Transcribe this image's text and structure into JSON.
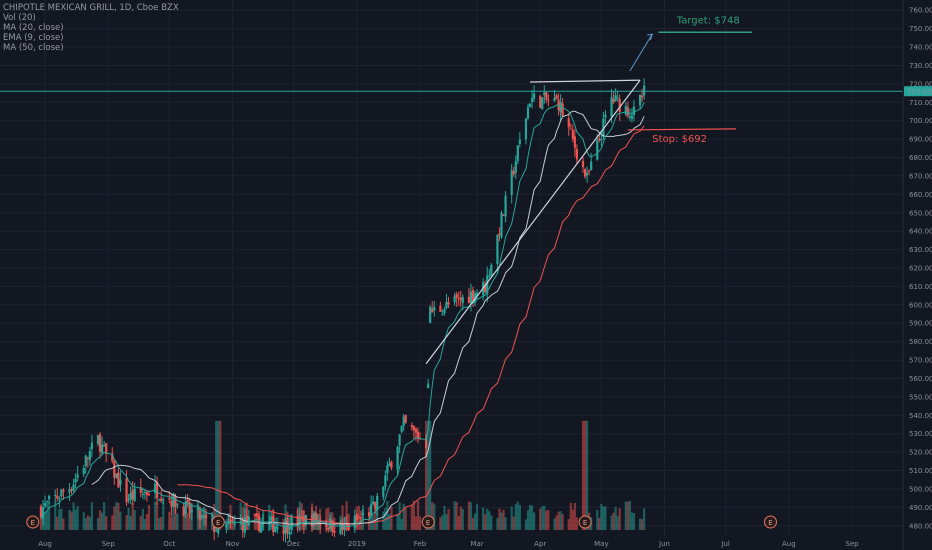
{
  "legend": {
    "symbol": "CHIPOTLE MEXICAN GRILL, 1D, Cboe BZX",
    "vol": "Vol (20)",
    "ma20": "MA (20, close)",
    "ema9": "EMA (9, close)",
    "ma50": "MA (50, close)"
  },
  "annotations": {
    "target_label": "Target: $748",
    "stop_label": "Stop: $692",
    "earnings_marker": "E"
  },
  "colors": {
    "background": "#131722",
    "grid": "#1e2230",
    "up": "#26a69a",
    "down": "#ef5350",
    "ma20": "#c8ccd4",
    "ema9": "#26a69a",
    "ma50": "#ef5350",
    "target": "#2ea07a",
    "stop": "#ef5350",
    "pattern": "#d1d4dc",
    "hline": "#26a69a"
  },
  "chart_data": {
    "type": "candlestick",
    "title": "CHIPOTLE MEXICAN GRILL, 1D, Cboe BZX",
    "price_axis": {
      "range": [
        475,
        765
      ],
      "ticks": [
        480,
        490,
        500,
        510,
        520,
        530,
        540,
        550,
        560,
        570,
        580,
        590,
        600,
        610,
        620,
        630,
        640,
        650,
        660,
        670,
        680,
        690,
        700,
        710,
        720,
        730,
        740,
        750,
        760
      ]
    },
    "time_axis": {
      "labels": [
        "Aug",
        "Sep",
        "Oct",
        "Nov",
        "Dec",
        "2019",
        "Feb",
        "Mar",
        "Apr",
        "May",
        "Jun",
        "Jul",
        "Aug",
        "Sep"
      ]
    },
    "last_price_label": "715.03",
    "target_price": 748,
    "stop_price": 692,
    "horizontal_level": 716,
    "resistance_level": 720,
    "ascending_triangle": {
      "top": [
        [
          "2019-03-27",
          721
        ],
        [
          "2019-05-20",
          722
        ]
      ],
      "base": [
        [
          "2019-02-04",
          568
        ],
        [
          "2019-05-20",
          722
        ]
      ]
    },
    "earnings_markers": [
      "2018-07-26",
      "2018-10-25",
      "2019-02-05",
      "2019-04-23",
      "2019-07-23"
    ],
    "price_path": [
      [
        "2018-07-30",
        489
      ],
      [
        "2018-08-14",
        502
      ],
      [
        "2018-08-27",
        527
      ],
      [
        "2018-09-10",
        495
      ],
      [
        "2018-09-24",
        500
      ],
      [
        "2018-10-08",
        490
      ],
      [
        "2018-10-25",
        478
      ],
      [
        "2018-11-08",
        482
      ],
      [
        "2018-11-26",
        480
      ],
      [
        "2018-12-10",
        484
      ],
      [
        "2018-12-26",
        478
      ],
      [
        "2019-01-10",
        490
      ],
      [
        "2019-01-24",
        535
      ],
      [
        "2019-02-04",
        525
      ],
      [
        "2019-02-06",
        596
      ],
      [
        "2019-02-20",
        602
      ],
      [
        "2019-03-05",
        610
      ],
      [
        "2019-03-15",
        655
      ],
      [
        "2019-03-27",
        712
      ],
      [
        "2019-04-10",
        710
      ],
      [
        "2019-04-24",
        668
      ],
      [
        "2019-05-06",
        712
      ],
      [
        "2019-05-17",
        704
      ],
      [
        "2019-05-22",
        715
      ]
    ]
  }
}
